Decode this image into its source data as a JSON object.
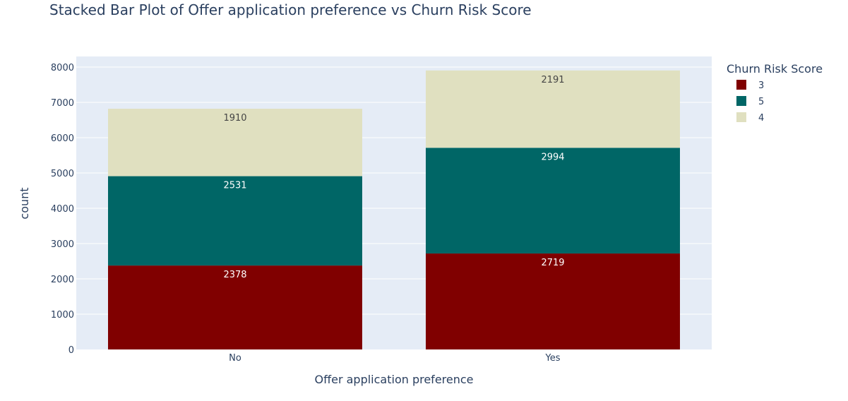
{
  "chart_data": {
    "type": "bar",
    "stacked": true,
    "title": "Stacked Bar Plot of Offer application preference vs Churn Risk Score",
    "xlabel": "Offer application preference",
    "ylabel": "count",
    "categories": [
      "No",
      "Yes"
    ],
    "ylim": [
      0,
      8300
    ],
    "yticks": [
      0,
      1000,
      2000,
      3000,
      4000,
      5000,
      6000,
      7000,
      8000
    ],
    "grid": true,
    "legend": {
      "title": "Churn Risk Score",
      "placement": "top-right"
    },
    "series": [
      {
        "name": "3",
        "values": [
          2378,
          2719
        ],
        "color": "#800000",
        "label_color": "#ffffff"
      },
      {
        "name": "5",
        "values": [
          2531,
          2994
        ],
        "color": "#006666",
        "label_color": "#ffffff"
      },
      {
        "name": "4",
        "values": [
          1910,
          2191
        ],
        "color": "#e0e0c0",
        "label_color": "#444444"
      }
    ],
    "colors": {
      "plot_background": "#e5ecf6",
      "grid": "#ffffff",
      "text": "#2a3f5f"
    }
  }
}
